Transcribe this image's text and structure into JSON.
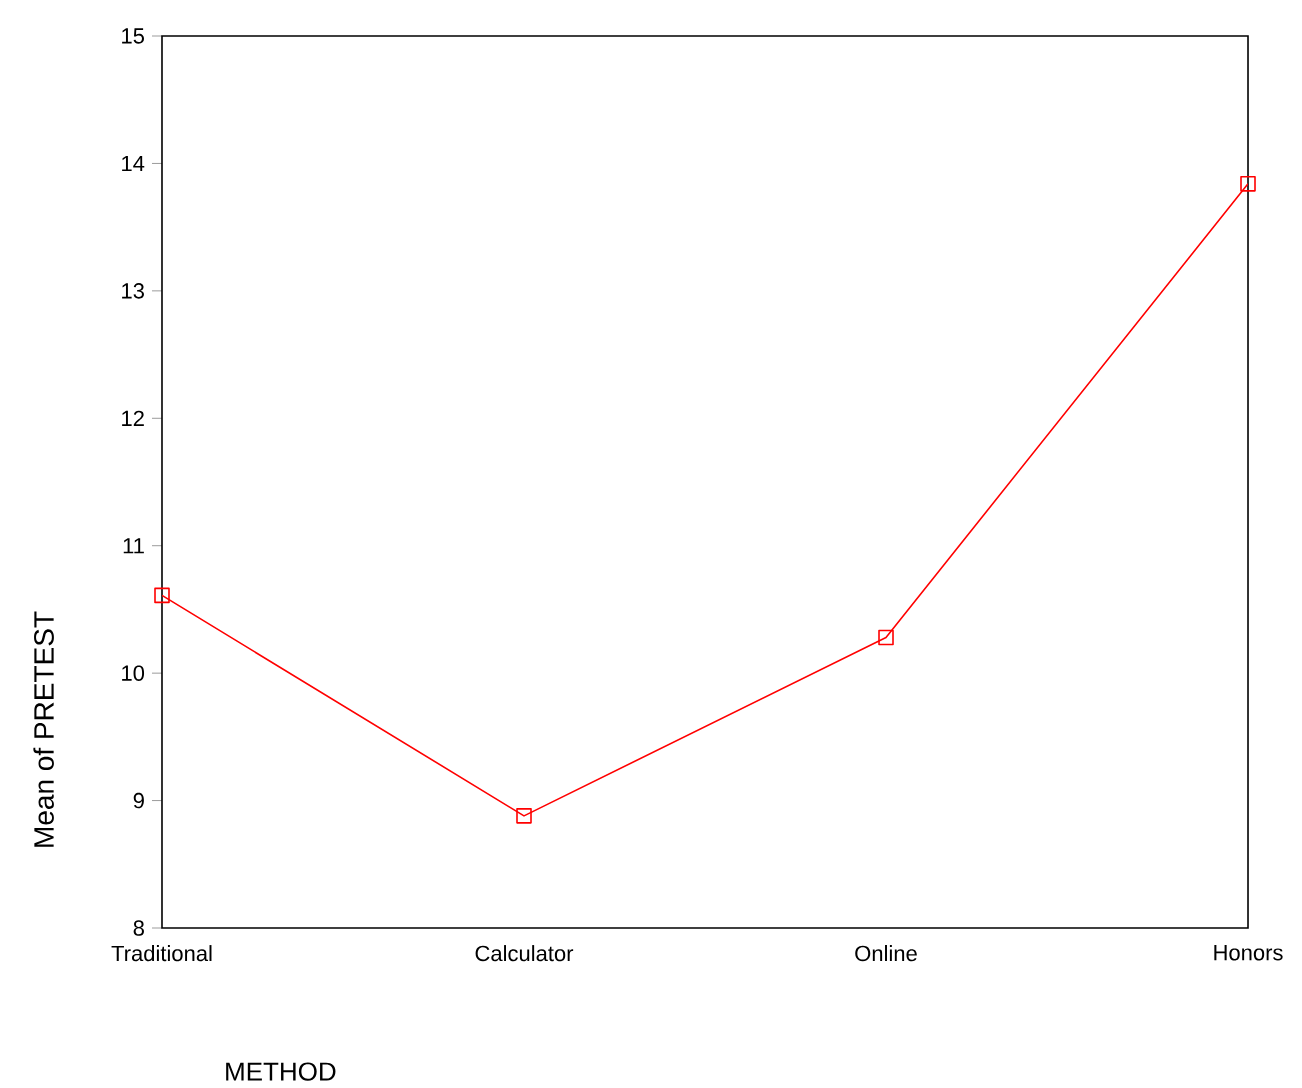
{
  "chart_data": {
    "type": "line",
    "categories": [
      "Traditional",
      "Calculator",
      "Online",
      "Honors"
    ],
    "series": [
      {
        "color": "#ff0000",
        "values": [
          10.61,
          8.88,
          10.28,
          13.84
        ]
      }
    ],
    "xlabel": "METHOD",
    "ylabel": "Mean of PRETEST",
    "ylim": [
      8,
      15
    ],
    "yticks": [
      8,
      9,
      10,
      11,
      12,
      13,
      14,
      15
    ],
    "marker": "square",
    "line_style": "solid"
  }
}
